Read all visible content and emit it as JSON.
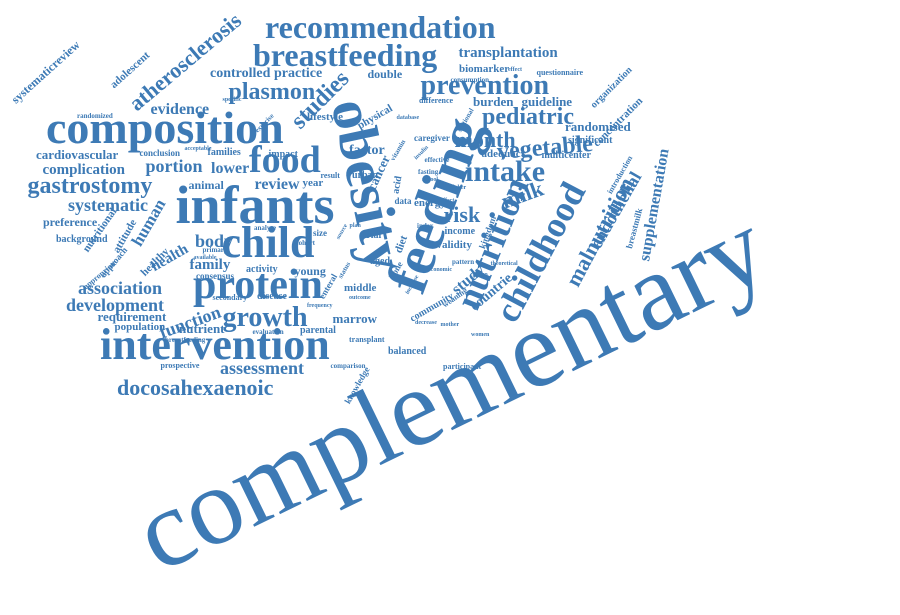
{
  "color": "#3d7ab5",
  "words": {
    "complementary": "complementary",
    "composition": "composition",
    "infants": "infants",
    "obesity": "obesity",
    "feeding": "feeding",
    "intervention": "intervention",
    "recommendation": "recommendation",
    "breastfeeding": "breastfeeding",
    "protein": "protein",
    "child": "child",
    "food": "food",
    "nutrition": "nutrition",
    "childhood": "childhood",
    "intake": "intake",
    "prevention": "prevention",
    "gastrostomy": "gastrostomy",
    "docosahexaenoic": "docosahexaenoic",
    "atherosclerosis": "atherosclerosis",
    "growth": "growth",
    "plasmon": "plasmon",
    "malnutrition": "malnutrition",
    "pediatric": "pediatric",
    "vegetable": "vegetable",
    "studies": "studies",
    "milk": "milk",
    "risk": "risk",
    "month": "month",
    "association": "association",
    "development": "development",
    "function": "function",
    "assessment": "assessment",
    "systematic": "systematic",
    "complication": "complication",
    "portion": "portion",
    "human": "human",
    "body": "body",
    "endothelial": "endothelial",
    "supplementation": "supplementation",
    "transplantation": "transplantation",
    "evidence": "evidence",
    "lower": "lower",
    "review": "review",
    "health": "health",
    "family": "family",
    "controlled": "controlled",
    "practice": "practice",
    "systematicreview": "systematicreview",
    "study": "study",
    "countrie": "countrie",
    "randomised": "randomised",
    "burden": "burden",
    "guideline": "guideline",
    "cardiovascular": "cardiovascular",
    "preference": "preference",
    "requirement": "requirement",
    "population": "population",
    "nutrient": "nutrient",
    "marrow": "marrow",
    "middle": "middle",
    "factor": "factor",
    "lifestyle": "lifestyle",
    "adolescent": "adolescent",
    "biomarker": "biomarker",
    "double": "double",
    "cancer": "cancer",
    "physical": "physical",
    "concentration": "concentration",
    "organization": "organization",
    "significant": "significant",
    "adequacy": "adequacy",
    "multicenter": "multicenter",
    "attitude": "attitude",
    "nutritional": "nutritional",
    "healthy": "healthy",
    "background": "background",
    "animal": "animal",
    "conclusion": "conclusion",
    "families": "families",
    "year": "year",
    "impact": "impact",
    "young": "young",
    "activity": "activity",
    "consensus": "consensus",
    "disease": "disease",
    "secondary": "secondary",
    "parental": "parental",
    "balanced": "balanced",
    "participant": "participant",
    "prospective": "prospective",
    "knowledge": "knowledge",
    "community": "community",
    "income": "income",
    "validity": "validity",
    "energy": "energy",
    "kingdom": "kingdom",
    "breastmilk": "breastmilk",
    "questionnaire": "questionnaire",
    "consumption": "consumption",
    "difference": "difference",
    "caregiver": "caregiver",
    "urban": "urban",
    "data": "data",
    "aged": "aged",
    "diet": "diet",
    "trial": "trial",
    "size": "size",
    "bone": "bone",
    "approach": "approach",
    "appropriate": "appropriate",
    "introduction": "introduction",
    "acid": "acid",
    "randomized": "randomized",
    "effective": "effective",
    "sectional": "sectional",
    "weaning": "weaning",
    "result": "result",
    "enteral": "enteral",
    "transplant": "transplant",
    "comparison": "comparison",
    "pattern": "pattern",
    "evaluation": "evaluation",
    "breastfeeding_small": "breastfeeding",
    "primary": "primary",
    "analyse": "analyse",
    "cohort": "cohort",
    "available": "available",
    "exercise": "exercise",
    "school": "school",
    "higher": "higher",
    "index": "index",
    "fasting": "fasting",
    "vitamin": "vitamin",
    "plan": "plan",
    "group": "group",
    "status": "status",
    "affect": "affect",
    "theoretical": "theoretical",
    "acceptable": "acceptable",
    "source": "source",
    "insulin": "insulin",
    "database": "database",
    "increase": "increase",
    "decrease": "decrease",
    "mother": "mother",
    "outcome": "outcome",
    "women": "women",
    "economic": "economic",
    "frequency": "frequency",
    "specific": "specific",
    "effect": "effect"
  }
}
